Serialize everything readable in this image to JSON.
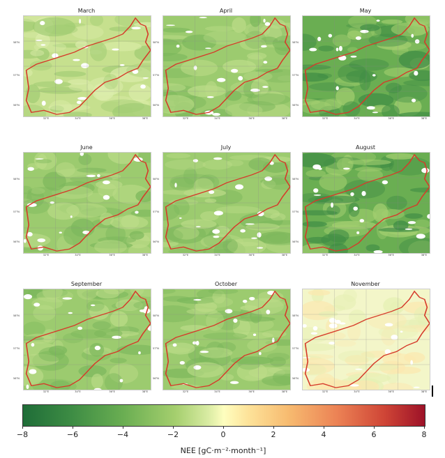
{
  "panels": [
    {
      "title": "March",
      "tone": "light",
      "lat_labels": [
        "58°N",
        "57°N",
        "56°N"
      ],
      "lon_labels": [
        "32°E",
        "34°E",
        "36°E",
        "38°E"
      ]
    },
    {
      "title": "April",
      "tone": "medium",
      "lat_labels": [
        "58°N",
        "57°N",
        "56°N"
      ],
      "lon_labels": [
        "32°E",
        "34°E",
        "36°E",
        "38°E"
      ]
    },
    {
      "title": "May",
      "tone": "dark",
      "lat_labels": [
        "58°N",
        "57°N",
        "56°N"
      ],
      "lon_labels": [
        "32°E",
        "34°E",
        "36°E",
        "38°E"
      ]
    },
    {
      "title": "June",
      "tone": "medium",
      "lat_labels": [
        "58°N",
        "57°N",
        "56°N"
      ],
      "lon_labels": [
        "32°E",
        "34°E",
        "36°E",
        "38°E"
      ]
    },
    {
      "title": "July",
      "tone": "medium",
      "lat_labels": [
        "58°N",
        "57°N",
        "56°N"
      ],
      "lon_labels": [
        "32°E",
        "34°E",
        "36°E",
        "38°E"
      ]
    },
    {
      "title": "August",
      "tone": "dark",
      "lat_labels": [
        "58°N",
        "57°N",
        "56°N"
      ],
      "lon_labels": [
        "32°E",
        "34°E",
        "36°E",
        "38°E"
      ]
    },
    {
      "title": "September",
      "tone": "medium",
      "lat_labels": [
        "58°N",
        "57°N",
        "56°N"
      ],
      "lon_labels": [
        "32°E",
        "34°E",
        "36°E",
        "38°E"
      ]
    },
    {
      "title": "October",
      "tone": "medium",
      "lat_labels": [
        "58°N",
        "57°N",
        "56°N"
      ],
      "lon_labels": [
        "32°E",
        "34°E",
        "36°E",
        "38°E"
      ]
    },
    {
      "title": "November",
      "tone": "pale",
      "lat_labels": [
        "58°N",
        "57°N",
        "56°N"
      ],
      "lon_labels": [
        "32°E",
        "34°E",
        "36°E",
        "38°E"
      ]
    }
  ],
  "tone_colors": {
    "pale": [
      "#f3f6c9",
      "#e6f0b4",
      "#fbe8b0"
    ],
    "light": [
      "#c6e08e",
      "#dcedab",
      "#9fcb72"
    ],
    "medium": [
      "#9ccb6f",
      "#7cb75c",
      "#bcdc88"
    ],
    "dark": [
      "#6aae52",
      "#3f8c45",
      "#a3cf70"
    ]
  },
  "boundary_color": "#d63a2a",
  "colorbar": {
    "title": "NEE [gC·m⁻²·month⁻¹]",
    "ticks": [
      "−8",
      "−6",
      "−4",
      "−2",
      "0",
      "2",
      "4",
      "6",
      "8"
    ]
  }
}
